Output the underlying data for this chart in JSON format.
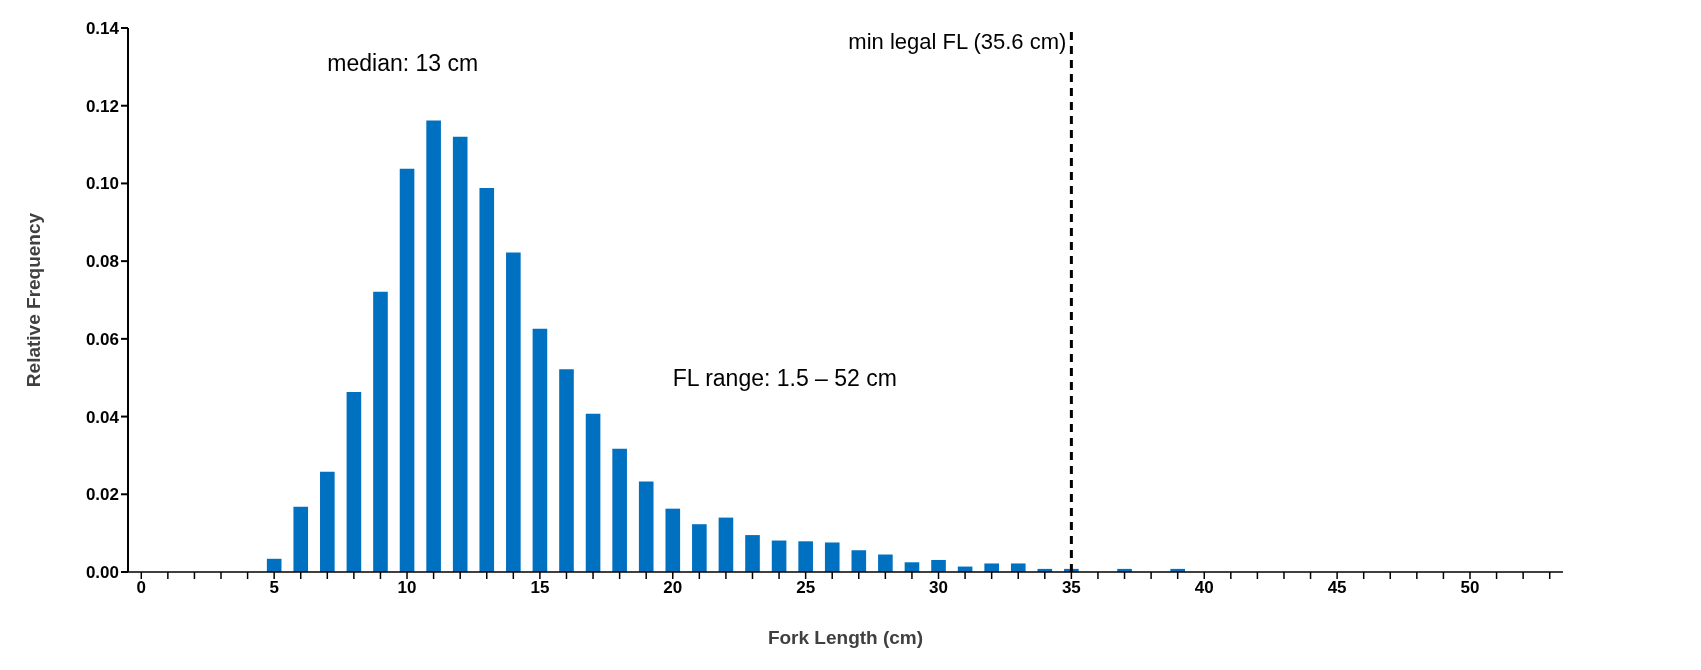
{
  "chart_data": {
    "type": "bar",
    "xlabel": "Fork Length (cm)",
    "ylabel": "Relative Frequency",
    "x": [
      5,
      6,
      7,
      8,
      9,
      10,
      11,
      12,
      13,
      14,
      15,
      16,
      17,
      18,
      19,
      20,
      21,
      22,
      23,
      24,
      25,
      26,
      27,
      28,
      29,
      30,
      31,
      32,
      33,
      34,
      35,
      37,
      39
    ],
    "values": [
      0.0034,
      0.0168,
      0.0258,
      0.0463,
      0.0721,
      0.1038,
      0.1162,
      0.112,
      0.0988,
      0.0822,
      0.0626,
      0.0522,
      0.0407,
      0.0317,
      0.0233,
      0.0163,
      0.0123,
      0.014,
      0.0095,
      0.0081,
      0.0079,
      0.0076,
      0.0056,
      0.0045,
      0.0025,
      0.0031,
      0.0014,
      0.0022,
      0.0022,
      0.0008,
      0.0008,
      0.0008,
      0.0008
    ],
    "color": "#0070c0",
    "xlim": [
      -0.5,
      53.5
    ],
    "xticks": [
      0,
      {
        "value": 1,
        "label": null
      },
      {
        "value": 2,
        "label": null
      },
      {
        "value": 3,
        "label": null
      },
      {
        "value": 4,
        "label": null
      },
      5,
      {
        "value": 6,
        "label": null
      },
      {
        "value": 7,
        "label": null
      },
      {
        "value": 8,
        "label": null
      },
      {
        "value": 9,
        "label": null
      },
      10,
      {
        "value": 11,
        "label": null
      },
      {
        "value": 12,
        "label": null
      },
      {
        "value": 13,
        "label": null
      },
      {
        "value": 14,
        "label": null
      },
      15,
      {
        "value": 16,
        "label": null
      },
      {
        "value": 17,
        "label": null
      },
      {
        "value": 18,
        "label": null
      },
      {
        "value": 19,
        "label": null
      },
      20,
      {
        "value": 21,
        "label": null
      },
      {
        "value": 22,
        "label": null
      },
      {
        "value": 23,
        "label": null
      },
      {
        "value": 24,
        "label": null
      },
      25,
      {
        "value": 26,
        "label": null
      },
      {
        "value": 27,
        "label": null
      },
      {
        "value": 28,
        "label": null
      },
      {
        "value": 29,
        "label": null
      },
      30,
      {
        "value": 31,
        "label": null
      },
      {
        "value": 32,
        "label": null
      },
      {
        "value": 33,
        "label": null
      },
      {
        "value": 34,
        "label": null
      },
      35,
      {
        "value": 36,
        "label": null
      },
      {
        "value": 37,
        "label": null
      },
      {
        "value": 38,
        "label": null
      },
      {
        "value": 39,
        "label": null
      },
      40,
      {
        "value": 41,
        "label": null
      },
      {
        "value": 42,
        "label": null
      },
      {
        "value": 43,
        "label": null
      },
      {
        "value": 44,
        "label": null
      },
      45,
      {
        "value": 46,
        "label": null
      },
      {
        "value": 47,
        "label": null
      },
      {
        "value": 48,
        "label": null
      },
      {
        "value": 49,
        "label": null
      },
      50,
      {
        "value": 51,
        "label": null
      },
      {
        "value": 52,
        "label": null
      },
      {
        "value": 53,
        "label": null
      }
    ],
    "ylim": [
      0,
      0.14
    ],
    "yticks": [
      {
        "value": 0,
        "label": "0.00"
      },
      {
        "value": 0.02,
        "label": "0.02"
      },
      {
        "value": 0.04,
        "label": "0.04"
      },
      {
        "value": 0.06,
        "label": "0.06"
      },
      {
        "value": 0.08,
        "label": "0.08"
      },
      {
        "value": 0.1,
        "label": "0.10"
      },
      {
        "value": 0.12,
        "label": "0.12"
      },
      {
        "value": 0.14,
        "label": "0.14"
      }
    ],
    "ref_lines": [
      {
        "axis": "x",
        "value": 35,
        "label": "min legal FL (35.6 cm)",
        "color": "#000000",
        "line_style": "dashed"
      }
    ],
    "annotations": [
      "median: 13 cm",
      "FL range: 1.5 – 52 cm"
    ],
    "grid": false,
    "legend": false
  }
}
